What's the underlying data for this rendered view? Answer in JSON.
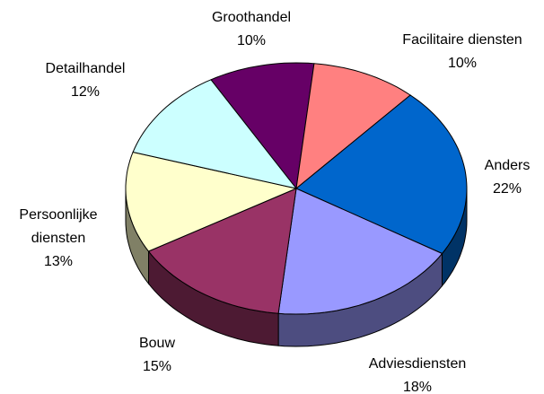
{
  "chart_data": {
    "type": "pie",
    "categories": [
      "Groothandel",
      "Facilitaire diensten",
      "Anders",
      "Adviesdiensten",
      "Bouw",
      "Persoonlijke diensten",
      "Detailhandel"
    ],
    "values": [
      10,
      10,
      22,
      18,
      15,
      13,
      12
    ],
    "value_labels": [
      "10%",
      "10%",
      "22%",
      "18%",
      "15%",
      "13%",
      "12%"
    ],
    "colors": [
      "#660066",
      "#ff8080",
      "#0066cc",
      "#9999ff",
      "#993366",
      "#ffffcc",
      "#ccffff"
    ]
  }
}
